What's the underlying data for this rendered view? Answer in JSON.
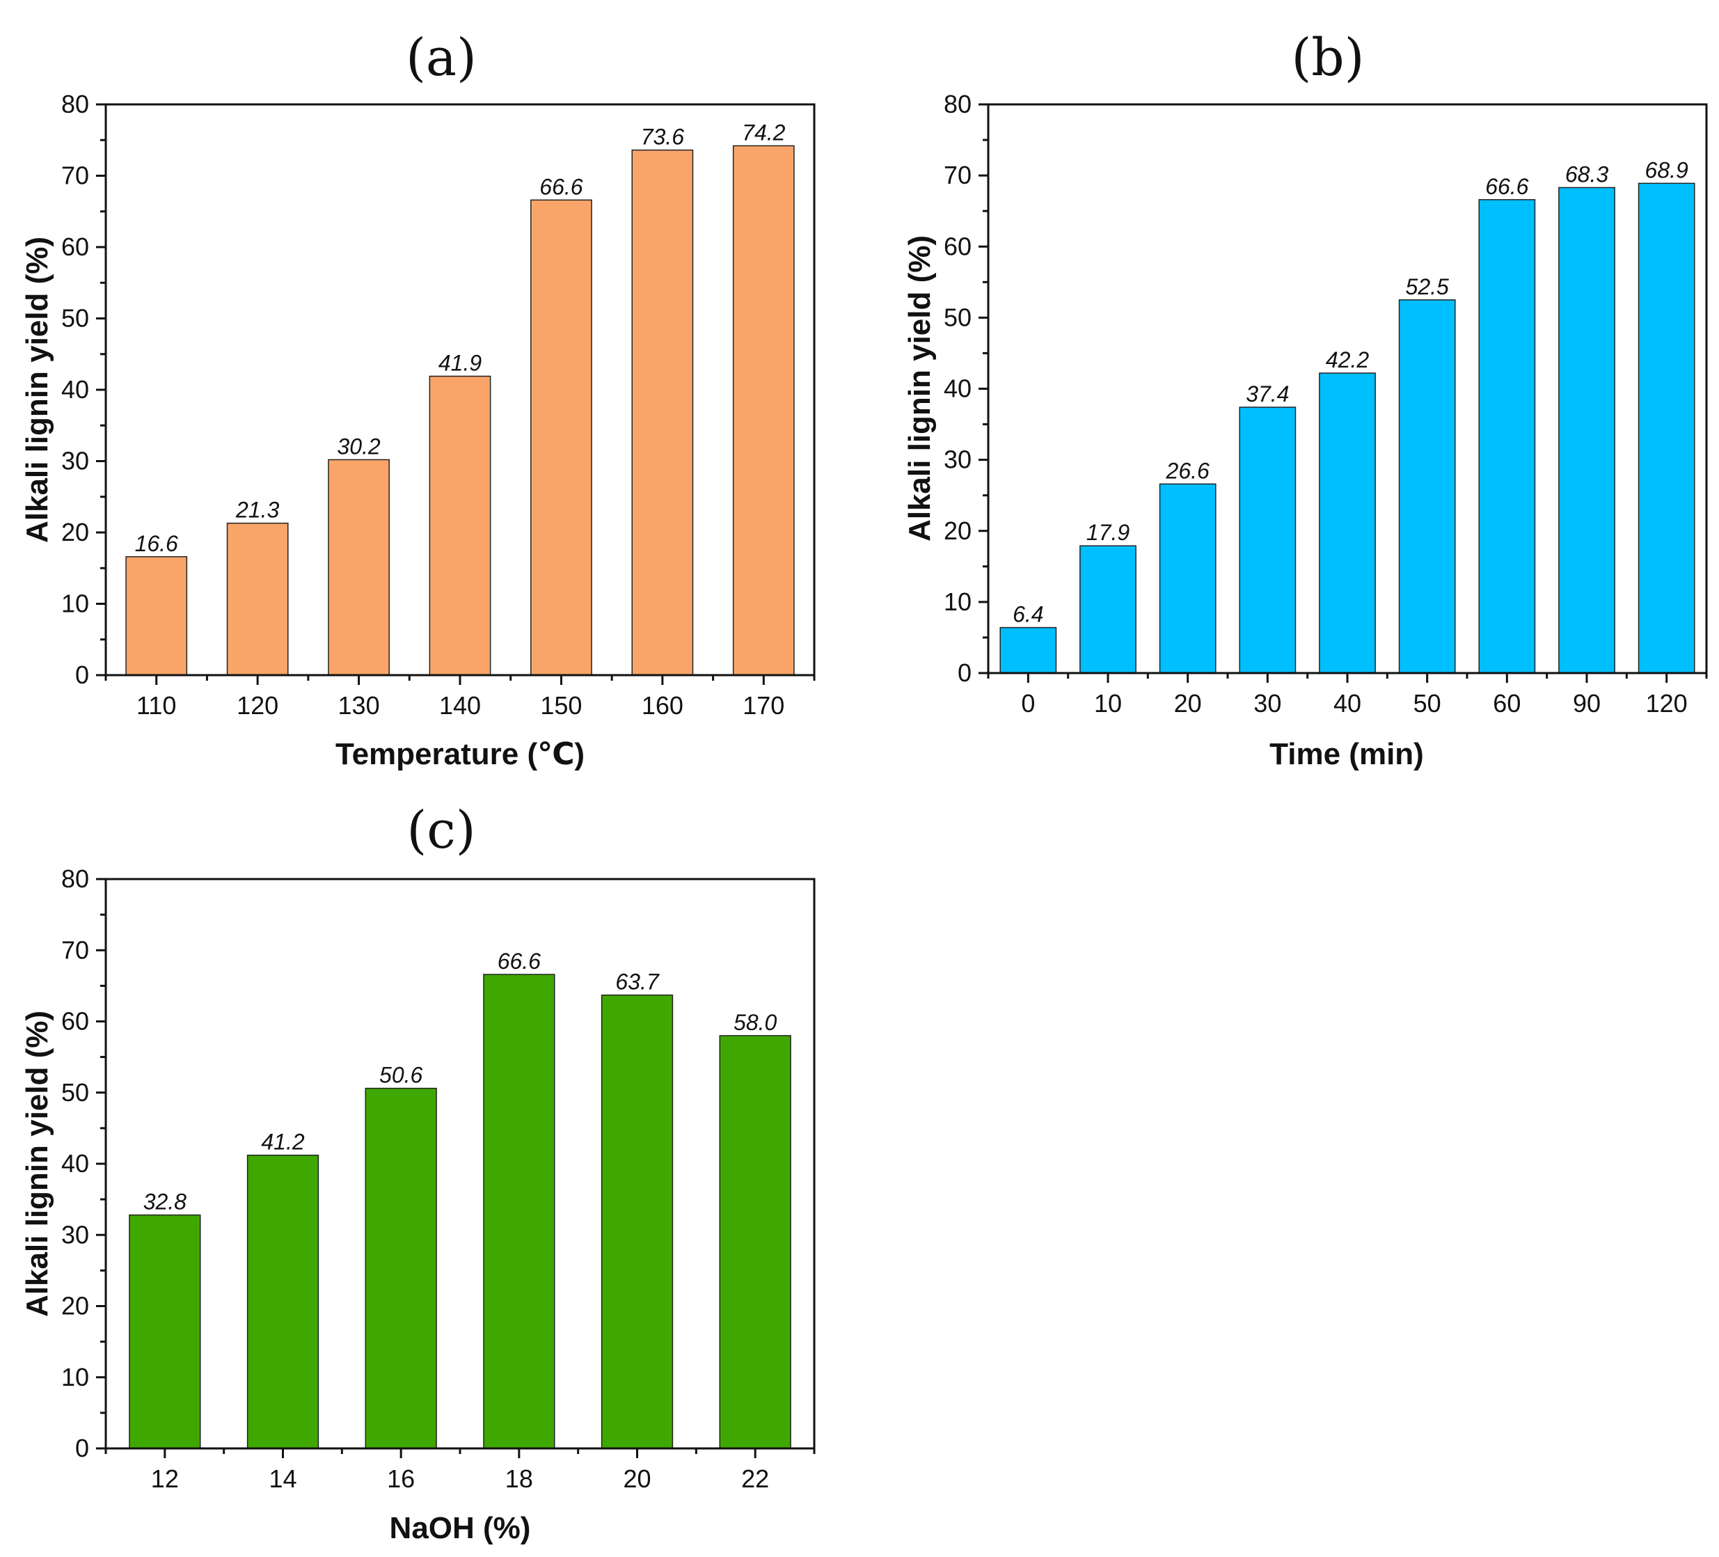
{
  "chart_data": [
    {
      "type": "bar",
      "panel": "(a)",
      "xlabel": "Temperature (℃)",
      "ylabel": "Alkali lignin yield (%)",
      "categories": [
        "110",
        "120",
        "130",
        "140",
        "150",
        "160",
        "170"
      ],
      "values": [
        16.6,
        21.3,
        30.2,
        41.9,
        66.6,
        73.6,
        74.2
      ],
      "data_labels": [
        "16.6",
        "21.3",
        "30.2",
        "41.9",
        "66.6",
        "73.6",
        "74.2"
      ],
      "ylim": [
        0,
        80
      ],
      "yticks": [
        "0",
        "10",
        "20",
        "30",
        "40",
        "50",
        "60",
        "70",
        "80"
      ],
      "grid": false,
      "color": "#F9A56A"
    },
    {
      "type": "bar",
      "panel": "(b)",
      "xlabel": "Time (min)",
      "ylabel": "Alkali lignin yield (%)",
      "categories": [
        "0",
        "10",
        "20",
        "30",
        "40",
        "50",
        "60",
        "90",
        "120"
      ],
      "values": [
        6.4,
        17.9,
        26.6,
        37.4,
        42.2,
        52.5,
        66.6,
        68.3,
        68.9
      ],
      "data_labels": [
        "6.4",
        "17.9",
        "26.6",
        "37.4",
        "42.2",
        "52.5",
        "66.6",
        "68.3",
        "68.9"
      ],
      "ylim": [
        0,
        80
      ],
      "yticks": [
        "0",
        "10",
        "20",
        "30",
        "40",
        "50",
        "60",
        "70",
        "80"
      ],
      "grid": false,
      "color": "#00BFFF"
    },
    {
      "type": "bar",
      "panel": "(c)",
      "xlabel": "NaOH (%)",
      "ylabel": "Alkali lignin yield (%)",
      "categories": [
        "12",
        "14",
        "16",
        "18",
        "20",
        "22"
      ],
      "values": [
        32.8,
        41.2,
        50.6,
        66.6,
        63.7,
        58.0
      ],
      "data_labels": [
        "32.8",
        "41.2",
        "50.6",
        "66.6",
        "63.7",
        "58.0"
      ],
      "ylim": [
        0,
        80
      ],
      "yticks": [
        "0",
        "10",
        "20",
        "30",
        "40",
        "50",
        "60",
        "70",
        "80"
      ],
      "grid": false,
      "color": "#3FA800"
    }
  ]
}
